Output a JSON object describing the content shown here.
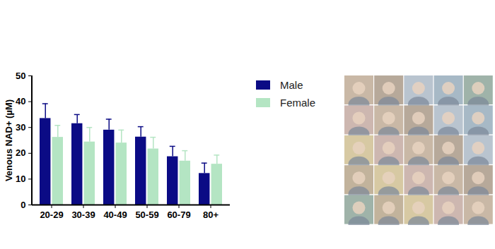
{
  "chart_data": {
    "type": "bar",
    "ylabel": "Venous NAD+ (µM)",
    "categories": [
      "20-29",
      "30-39",
      "40-49",
      "50-59",
      "60-79",
      "80+"
    ],
    "series": [
      {
        "name": "Male",
        "color": "#0b0b85",
        "values": [
          33.5,
          31.5,
          29.0,
          26.3,
          18.7,
          12.2
        ],
        "errors": [
          5.7,
          3.5,
          4.2,
          4.0,
          4.0,
          4.0
        ]
      },
      {
        "name": "Female",
        "color": "#b4e5c3",
        "values": [
          26.2,
          24.4,
          24.0,
          21.7,
          17.0,
          15.8
        ],
        "errors": [
          4.6,
          5.6,
          5.0,
          4.5,
          4.0,
          3.5
        ]
      }
    ],
    "ylim": [
      0,
      50
    ],
    "yticks": [
      0,
      10,
      20,
      30,
      40,
      50
    ],
    "grid": false,
    "legend": "right"
  }
}
